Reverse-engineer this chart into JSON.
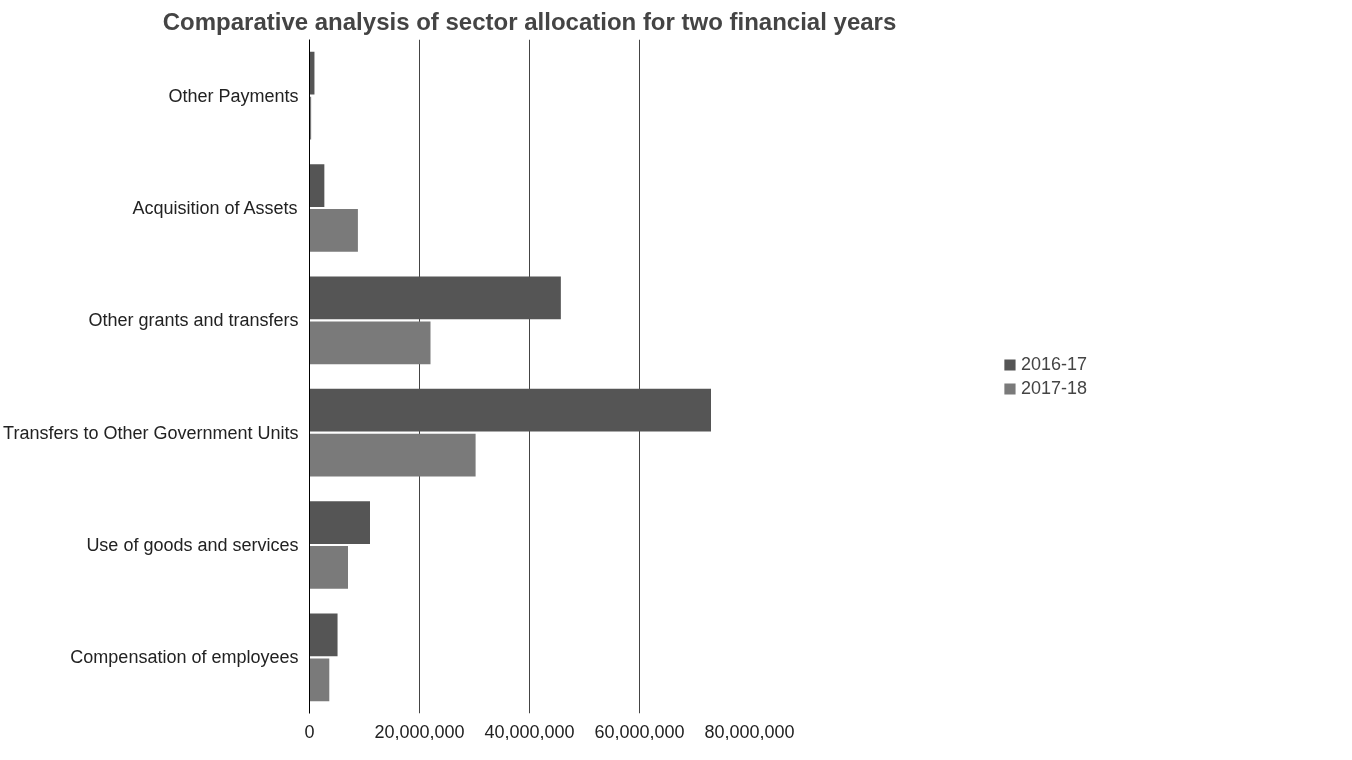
{
  "chart_data": {
    "type": "bar",
    "orientation": "horizontal",
    "title": "Comparative analysis of sector allocation for two financial years",
    "categories": [
      "Other Payments",
      "Acquisition of Assets",
      "Other grants and transfers",
      "Transfers to Other Government Units",
      "Use of goods and services",
      "Compensation of employees"
    ],
    "series": [
      {
        "name": "2016-17",
        "color": "#555555",
        "values": [
          900000,
          2700000,
          45700000,
          73000000,
          11000000,
          5100000
        ]
      },
      {
        "name": "2017-18",
        "color": "#7a7a7a",
        "values": [
          300000,
          8800000,
          22000000,
          30200000,
          7000000,
          3600000
        ]
      }
    ],
    "xlim": [
      0,
      80000000
    ],
    "xticks": [
      0,
      {
        "value": 20000000,
        "label": "20,000,000"
      },
      {
        "value": 40000000,
        "label": "40,000,000"
      },
      {
        "value": 60000000,
        "label": "60,000,000"
      },
      {
        "value": 80000000,
        "label": "80,000,000"
      }
    ],
    "grid": "x",
    "legend": "right"
  }
}
